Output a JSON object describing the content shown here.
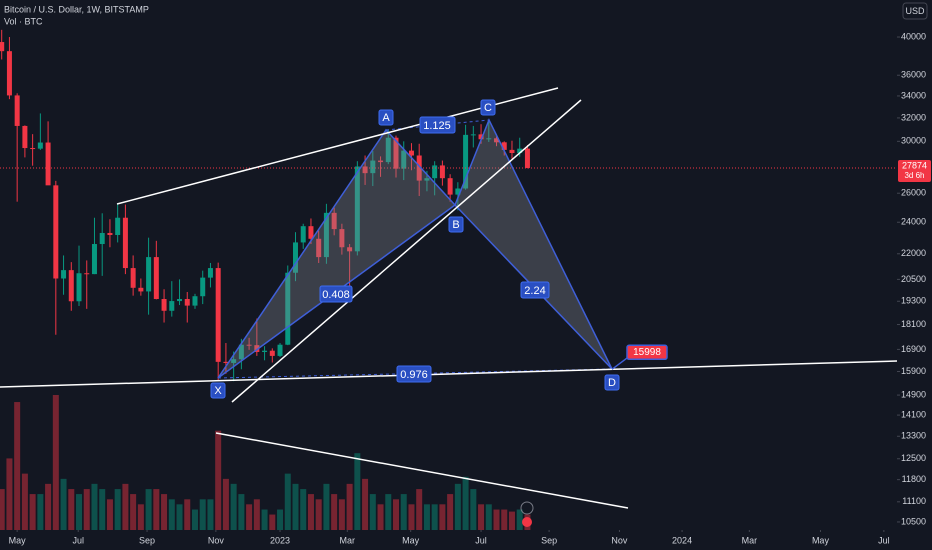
{
  "chart_data": {
    "type": "candlestick",
    "title": "Bitcoin / U.S. Dollar, 1W, BITSTAMP",
    "subtitle": "Vol · BTC",
    "currency": "USD",
    "countdown": "3d 6h",
    "log_scale": true,
    "grid": false,
    "up_color": "#089981",
    "down_color": "#f23645",
    "x": [
      0,
      1,
      2,
      3,
      4,
      5,
      6,
      7,
      8,
      9,
      10,
      11,
      12,
      13,
      14,
      15,
      16,
      17,
      18,
      19,
      20,
      21,
      22,
      23,
      24,
      25,
      26,
      27,
      28,
      29,
      30,
      31,
      32,
      33,
      34,
      35,
      36,
      37,
      38,
      39,
      40,
      41,
      42,
      43,
      44,
      45,
      46,
      47,
      48,
      49,
      50,
      51,
      52,
      53,
      54,
      55,
      56,
      57,
      58,
      59,
      60,
      61,
      62,
      63,
      64,
      65,
      66,
      67,
      68
    ],
    "open": [
      39450,
      38470,
      34050,
      31300,
      29450,
      29400,
      29900,
      26570,
      20550,
      21030,
      19300,
      20850,
      20800,
      22600,
      23300,
      23170,
      24300,
      21150,
      20030,
      19830,
      21800,
      19420,
      18800,
      19310,
      19420,
      19070,
      19570,
      20600,
      21150,
      16330,
      16280,
      16450,
      17120,
      17100,
      16780,
      16840,
      16600,
      17120,
      20880,
      22700,
      23740,
      22930,
      21800,
      24630,
      23550,
      22400,
      22150,
      27990,
      27480,
      28450,
      28330,
      30300,
      27820,
      29240,
      28850,
      26920,
      27100,
      28070,
      27100,
      25900,
      26340,
      30540,
      30580,
      30170,
      30250,
      29920,
      29300,
      29050,
      29400
    ],
    "high": [
      40800,
      40000,
      34250,
      31350,
      30600,
      32400,
      31700,
      26900,
      21900,
      21500,
      22500,
      21600,
      24300,
      24600,
      24200,
      25200,
      25200,
      21900,
      20550,
      23000,
      22800,
      19950,
      20400,
      20500,
      19800,
      19700,
      21000,
      21450,
      21470,
      17200,
      16800,
      17400,
      17450,
      18400,
      17050,
      16950,
      17200,
      21300,
      23350,
      23900,
      24250,
      23450,
      25250,
      25000,
      23900,
      22600,
      28400,
      28850,
      29200,
      28780,
      31000,
      30480,
      30000,
      29850,
      29800,
      27650,
      28400,
      28450,
      27400,
      26800,
      31400,
      31300,
      31450,
      31800,
      30400,
      30000,
      30050,
      30300,
      29700
    ],
    "low": [
      37600,
      33700,
      25400,
      28700,
      28050,
      29300,
      26600,
      17600,
      19650,
      18800,
      19050,
      18900,
      20800,
      20700,
      22400,
      22700,
      20800,
      19600,
      19600,
      18600,
      19400,
      18200,
      18500,
      19100,
      18200,
      18900,
      19150,
      20050,
      15500,
      15800,
      15480,
      16000,
      16880,
      16600,
      16400,
      16300,
      16550,
      17100,
      20400,
      22300,
      22600,
      21450,
      21400,
      23150,
      21950,
      19600,
      21900,
      26600,
      26520,
      27200,
      28170,
      27150,
      26960,
      27700,
      25800,
      26140,
      25850,
      26550,
      25400,
      24800,
      26250,
      29500,
      29800,
      29950,
      29600,
      28850,
      28600,
      28750,
      27850
    ],
    "close": [
      38470,
      34050,
      31300,
      29450,
      29400,
      29900,
      26570,
      20550,
      21030,
      19300,
      20850,
      20800,
      22600,
      23300,
      23170,
      24300,
      21150,
      20030,
      19830,
      21800,
      19420,
      18800,
      19310,
      19420,
      19070,
      19570,
      20600,
      21150,
      16330,
      16280,
      16450,
      17120,
      17100,
      16780,
      16840,
      16600,
      17120,
      20880,
      22700,
      23740,
      22930,
      21800,
      24630,
      23550,
      22400,
      22150,
      27990,
      27480,
      28450,
      28330,
      30300,
      27820,
      29240,
      28850,
      26920,
      27100,
      28070,
      27100,
      25900,
      26340,
      30540,
      30580,
      30170,
      30250,
      29920,
      29300,
      29050,
      29400,
      27874
    ],
    "volume": [
      18000,
      31500,
      56300,
      24800,
      15800,
      15800,
      20300,
      59400,
      22500,
      18000,
      15800,
      18000,
      20300,
      18000,
      13500,
      18000,
      20300,
      15800,
      11300,
      18000,
      18000,
      15800,
      13500,
      11300,
      13500,
      9000,
      13500,
      13500,
      43700,
      22500,
      20300,
      15800,
      11300,
      13500,
      9000,
      6800,
      9000,
      24800,
      20300,
      18000,
      15800,
      13500,
      20300,
      15800,
      13500,
      20300,
      33800,
      22500,
      15800,
      11300,
      15800,
      13500,
      15800,
      11300,
      18000,
      11300,
      11300,
      11300,
      15800,
      20300,
      23400,
      18000,
      11300,
      11300,
      9000,
      9000,
      8100,
      9000,
      6800
    ],
    "xlim": [
      -0.22,
      115.8
    ],
    "xticks": [
      {
        "value": 2.0,
        "label": "May"
      },
      {
        "value": 9.9,
        "label": "Jul"
      },
      {
        "value": 18.8,
        "label": "Sep"
      },
      {
        "value": 27.7,
        "label": "Nov"
      },
      {
        "value": 36.0,
        "label": "2023"
      },
      {
        "value": 44.7,
        "label": "Mar"
      },
      {
        "value": 52.9,
        "label": "May"
      },
      {
        "value": 62.0,
        "label": "Jul"
      },
      {
        "value": 70.8,
        "label": "Sep"
      },
      {
        "value": 79.9,
        "label": "Nov"
      },
      {
        "value": 88.0,
        "label": "2024"
      },
      {
        "value": 96.7,
        "label": "Mar"
      },
      {
        "value": 105.9,
        "label": "May"
      },
      {
        "value": 114.1,
        "label": "Jul"
      }
    ],
    "ylim": [
      10270,
      44300
    ],
    "yticks": [
      40000,
      36000,
      34000,
      32000,
      30000,
      26000,
      24000,
      22000,
      20500,
      19300,
      18100,
      16900,
      15900,
      14900,
      14100,
      13300,
      12500,
      11800,
      11100,
      10500
    ],
    "pattern": {
      "points": [
        "X",
        "A",
        "B",
        "C",
        "D"
      ],
      "ratios": [
        0.408,
        1.125,
        2.24,
        0.976
      ],
      "target": 15998
    }
  }
}
